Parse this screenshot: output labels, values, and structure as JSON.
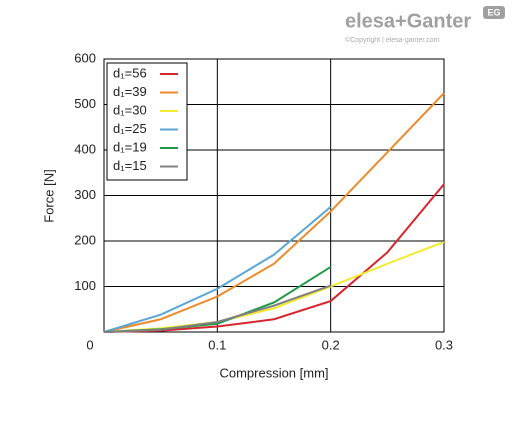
{
  "logo": {
    "brand": "elesa+Ganter",
    "copyright": "©Copyright | elesa-ganter.com",
    "badge": "EG"
  },
  "chart_data": {
    "type": "line",
    "xlabel": "Compression [mm]",
    "ylabel": "Force [N]",
    "x": [
      0,
      0.05,
      0.1,
      0.15,
      0.2,
      0.25,
      0.3
    ],
    "xlim": [
      0,
      0.3
    ],
    "xticks": [
      0.1,
      0.2,
      0.3
    ],
    "ylim": [
      0,
      600
    ],
    "yticks": [
      0,
      100,
      200,
      300,
      400,
      500,
      600
    ],
    "grid": true,
    "legend": "upper left",
    "series": [
      {
        "name": "d₁=56",
        "color": "#d7262e",
        "values": [
          0,
          3,
          12,
          28,
          68,
          175,
          325
        ]
      },
      {
        "name": "d₁=39",
        "color": "#ee8a2a",
        "values": [
          0,
          28,
          78,
          150,
          265,
          395,
          525
        ]
      },
      {
        "name": "d₁=30",
        "color": "#f2ea2a",
        "values": [
          0,
          8,
          22,
          52,
          100,
          150,
          198
        ]
      },
      {
        "name": "d₁=25",
        "color": "#5aa6d4",
        "values": [
          0,
          38,
          95,
          170,
          275,
          null,
          null
        ]
      },
      {
        "name": "d₁=19",
        "color": "#1f9a48",
        "values": [
          0,
          6,
          18,
          65,
          143,
          null,
          null
        ]
      },
      {
        "name": "d₁=15",
        "color": "#808080",
        "values": [
          0,
          5,
          22,
          58,
          102,
          null,
          null
        ]
      }
    ]
  }
}
